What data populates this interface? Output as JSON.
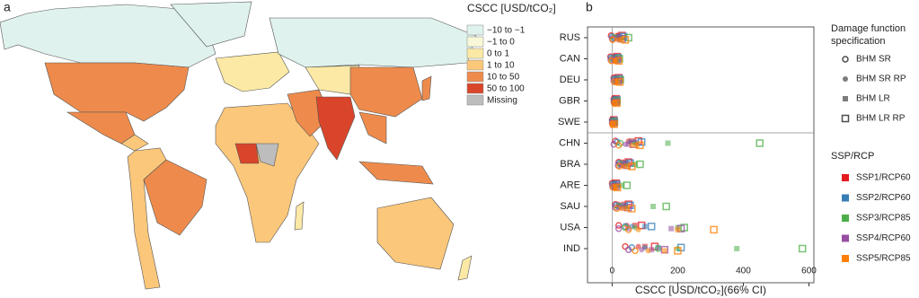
{
  "map": {
    "panel_label": "a",
    "legend_title": "CSCC [USD/tCO₂]",
    "legend": [
      {
        "label": "−10 to −1",
        "color": "#dff2ee"
      },
      {
        "label": "−1 to 0",
        "color": "#f8f8d8"
      },
      {
        "label": "0 to 1",
        "color": "#fce9a6"
      },
      {
        "label": "1 to 10",
        "color": "#fbc77a"
      },
      {
        "label": "10 to 50",
        "color": "#ee8b4c"
      },
      {
        "label": "50 to 100",
        "color": "#d9452a"
      },
      {
        "label": "Missing",
        "color": "#bdbdbd"
      }
    ]
  },
  "chart_data": {
    "type": "dotplot",
    "panel_label": "b",
    "x_label": "CSCC [USD/tCO₂](66% CI)",
    "xlim": [
      -75,
      615
    ],
    "xticks": [
      0,
      200,
      400,
      600
    ],
    "categories": [
      "RUS",
      "CAN",
      "DEU",
      "GBR",
      "SWE",
      "CHN",
      "BRA",
      "ARE",
      "SAU",
      "USA",
      "IND"
    ],
    "marker_legend_title": [
      "Damage function",
      "specification"
    ],
    "markers": [
      {
        "name": "BHM SR",
        "shape": "open-circle"
      },
      {
        "name": "BHM SR RP",
        "shape": "circle"
      },
      {
        "name": "BHM LR",
        "shape": "square"
      },
      {
        "name": "BHM LR RP",
        "shape": "open-square"
      }
    ],
    "series_legend_title": "SSP/RCP",
    "series": [
      {
        "name": "SSP1/RCP60",
        "color": "#e41a1c",
        "values": [
          [
            -3,
            15,
            20,
            30
          ],
          [
            -5,
            5,
            10,
            15
          ],
          [
            5,
            10,
            15,
            20
          ],
          [
            5,
            8,
            10,
            12
          ],
          [
            0,
            2,
            3,
            5
          ],
          [
            10,
            50,
            60,
            80
          ],
          [
            20,
            30,
            40,
            50
          ],
          [
            0,
            5,
            8,
            12
          ],
          [
            10,
            20,
            35,
            50
          ],
          [
            20,
            45,
            70,
            90
          ],
          [
            40,
            80,
            100,
            130
          ]
        ]
      },
      {
        "name": "SSP2/RCP60",
        "color": "#377eb8",
        "values": [
          [
            0,
            18,
            25,
            35
          ],
          [
            -3,
            8,
            12,
            18
          ],
          [
            6,
            12,
            16,
            22
          ],
          [
            6,
            9,
            11,
            14
          ],
          [
            1,
            3,
            4,
            6
          ],
          [
            15,
            55,
            70,
            90
          ],
          [
            22,
            35,
            45,
            55
          ],
          [
            2,
            6,
            10,
            14
          ],
          [
            12,
            25,
            40,
            55
          ],
          [
            40,
            60,
            100,
            120
          ],
          [
            60,
            100,
            140,
            210
          ]
        ]
      },
      {
        "name": "SSP3/RCP85",
        "color": "#4daf4a",
        "values": [
          [
            5,
            22,
            35,
            50
          ],
          [
            0,
            10,
            15,
            22
          ],
          [
            8,
            14,
            18,
            25
          ],
          [
            7,
            10,
            12,
            15
          ],
          [
            2,
            4,
            5,
            7
          ],
          [
            25,
            70,
            170,
            450
          ],
          [
            25,
            40,
            70,
            85
          ],
          [
            5,
            15,
            30,
            45
          ],
          [
            20,
            40,
            125,
            165
          ],
          [
            40,
            70,
            200,
            220
          ],
          [
            140,
            200,
            380,
            580
          ]
        ]
      },
      {
        "name": "SSP4/RCP60",
        "color": "#984ea3",
        "values": [
          [
            0,
            15,
            22,
            30
          ],
          [
            -4,
            6,
            10,
            14
          ],
          [
            5,
            10,
            14,
            18
          ],
          [
            5,
            8,
            10,
            12
          ],
          [
            0,
            2,
            3,
            5
          ],
          [
            5,
            40,
            50,
            65
          ],
          [
            18,
            28,
            36,
            45
          ],
          [
            1,
            5,
            8,
            11
          ],
          [
            10,
            22,
            35,
            48
          ],
          [
            20,
            50,
            180,
            210
          ],
          [
            50,
            90,
            120,
            160
          ]
        ]
      },
      {
        "name": "SSP5/RCP85",
        "color": "#ff7f00",
        "values": [
          [
            2,
            18,
            28,
            40
          ],
          [
            -2,
            8,
            12,
            20
          ],
          [
            7,
            12,
            17,
            23
          ],
          [
            6,
            9,
            12,
            14
          ],
          [
            1,
            3,
            4,
            6
          ],
          [
            20,
            60,
            75,
            85
          ],
          [
            22,
            36,
            48,
            60
          ],
          [
            3,
            8,
            12,
            16
          ],
          [
            15,
            30,
            45,
            60
          ],
          [
            50,
            80,
            200,
            310
          ],
          [
            70,
            110,
            160,
            200
          ]
        ]
      }
    ]
  }
}
